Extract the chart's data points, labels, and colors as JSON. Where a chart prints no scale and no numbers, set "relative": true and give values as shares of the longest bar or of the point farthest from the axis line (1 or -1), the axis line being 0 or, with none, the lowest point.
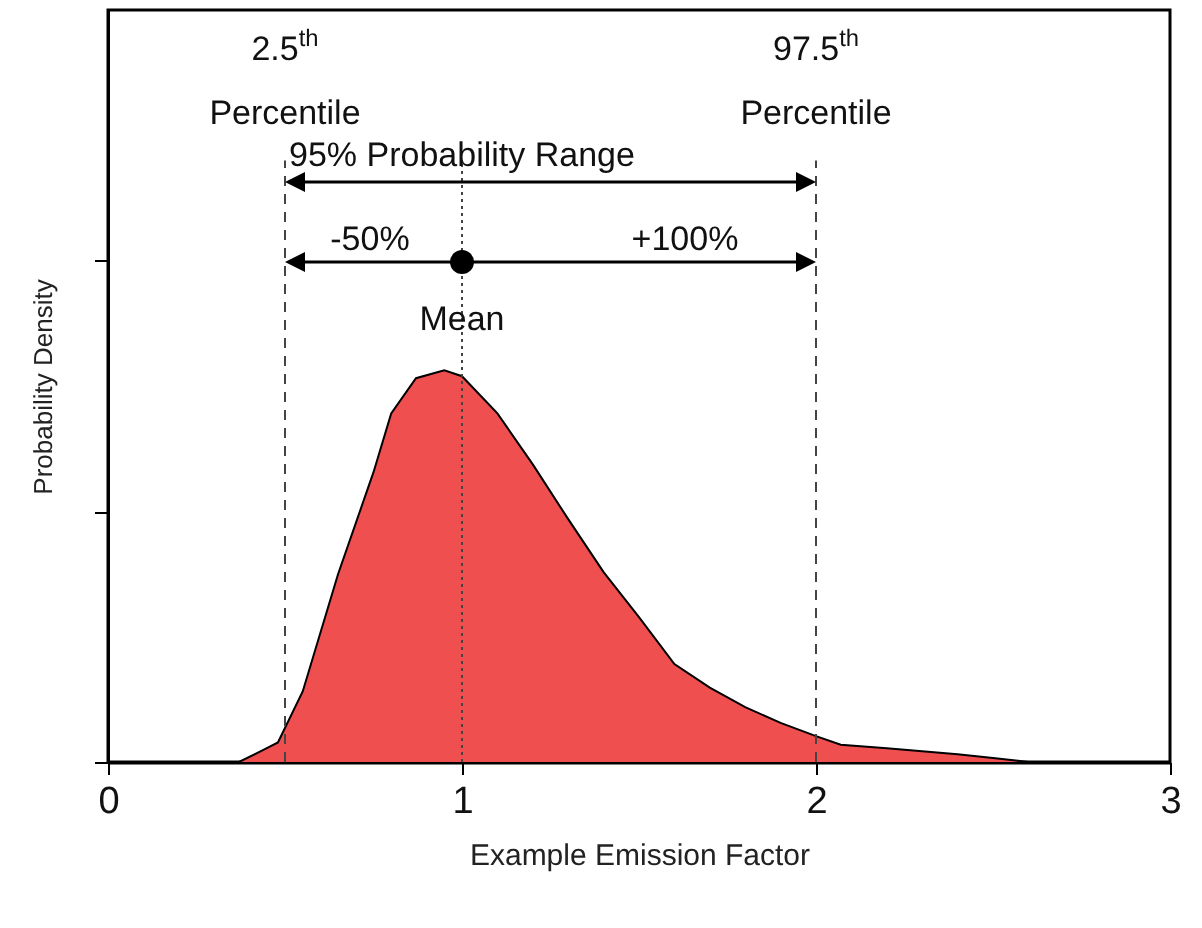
{
  "chart_data": {
    "type": "area",
    "xlabel": "Example Emission Factor",
    "ylabel": "Probability Density",
    "relative": true,
    "x": [
      0,
      0.37,
      0.45,
      0.48,
      0.55,
      0.65,
      0.75,
      0.8,
      0.87,
      0.95,
      1.0,
      1.1,
      1.2,
      1.3,
      1.4,
      1.5,
      1.6,
      1.7,
      1.8,
      1.9,
      2.0,
      2.07,
      2.2,
      2.4,
      2.5,
      2.6,
      3
    ],
    "series": [
      {
        "color": "#f04f4f",
        "values": [
          0,
          0,
          0.036,
          0.05,
          0.18,
          0.48,
          0.74,
          0.89,
          0.98,
          1.0,
          0.985,
          0.89,
          0.76,
          0.62,
          0.485,
          0.37,
          0.25,
          0.19,
          0.14,
          0.1,
          0.066,
          0.044,
          0.035,
          0.02,
          0.01,
          0,
          0
        ]
      }
    ],
    "xlim": [
      0,
      3
    ],
    "xticks": [
      0,
      1,
      2,
      3
    ],
    "grid": false,
    "ref_lines": [
      {
        "axis": "x",
        "value": 0.5,
        "label": "2.5$^{th}$ Percentile",
        "line_style": "dashed"
      },
      {
        "axis": "x",
        "value": 2,
        "label": "97.5$^{th}$ Percentile",
        "line_style": "dashed"
      },
      {
        "axis": "x",
        "value": 1,
        "label": "Mean",
        "line_style": "dotted"
      }
    ],
    "annotations": [
      "95% Probability Range",
      "-50%",
      "+100%"
    ]
  }
}
